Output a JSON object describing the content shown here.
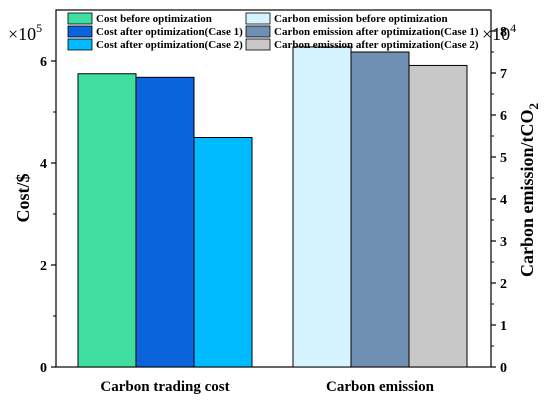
{
  "chart_data": {
    "type": "bar",
    "categories": [
      "Carbon trading cost",
      "Carbon emission"
    ],
    "left_axis": {
      "label": "Cost/$",
      "multiplier_text": "×10",
      "multiplier_exp": "5",
      "ylim": [
        0,
        7
      ],
      "ticks": [
        "0",
        "2",
        "4",
        "6"
      ]
    },
    "right_axis": {
      "label_main": "Carbon emission/tCO",
      "label_sub": "2",
      "multiplier_text": "×10",
      "multiplier_exp": "4",
      "ylim": [
        0,
        8.5
      ],
      "ticks": [
        "0",
        "1",
        "2",
        "3",
        "4",
        "5",
        "6",
        "7",
        "8"
      ]
    },
    "series": [
      {
        "name": "Cost before optimization",
        "category": "Carbon trading cost",
        "axis": "left",
        "value": 5.75,
        "color": "#40DFA0"
      },
      {
        "name": "Cost after optimization(Case 1)",
        "category": "Carbon trading cost",
        "axis": "left",
        "value": 5.68,
        "color": "#0A64DC"
      },
      {
        "name": "Cost after optimization(Case 2)",
        "category": "Carbon trading cost",
        "axis": "left",
        "value": 4.5,
        "color": "#00BBFF"
      },
      {
        "name": "Carbon emission before optimization",
        "category": "Carbon emission",
        "axis": "right",
        "value": 7.62,
        "color": "#D6F4FF"
      },
      {
        "name": "Carbon emission after optimization(Case 1)",
        "category": "Carbon emission",
        "axis": "right",
        "value": 7.5,
        "color": "#6F90B3"
      },
      {
        "name": "Carbon emission after optimization(Case 2)",
        "category": "Carbon emission",
        "axis": "right",
        "value": 7.18,
        "color": "#C8C8C8"
      }
    ],
    "legend_position": "top"
  }
}
